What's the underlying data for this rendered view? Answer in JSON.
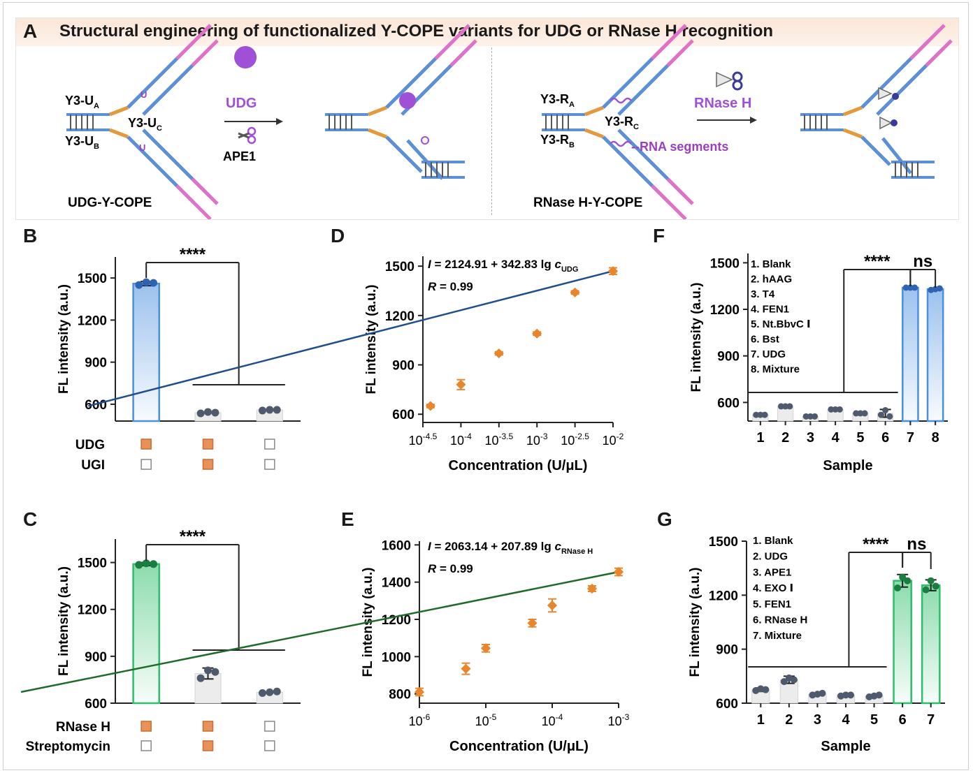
{
  "panelA": {
    "letter": "A",
    "title": "Structural engineering of functionalized Y-COPE variants for UDG or RNase H recognition",
    "left": {
      "labels": {
        "ua": "Y3-U",
        "ua_sub": "A",
        "ub": "Y3-U",
        "ub_sub": "B",
        "uc": "Y3-U",
        "uc_sub": "C"
      },
      "enzyme1": "UDG",
      "enzyme2": "APE1",
      "uracil": "U",
      "caption": "UDG-Y-COPE"
    },
    "right": {
      "labels": {
        "ra": "Y3-R",
        "ra_sub": "A",
        "rb": "Y3-R",
        "rb_sub": "B",
        "rc": "Y3-R",
        "rc_sub": "C"
      },
      "enzyme": "RNase H",
      "rna_label": "--RNA segments",
      "caption": "RNase H-Y-COPE"
    }
  },
  "panelB": {
    "letter": "B",
    "chart_data": {
      "type": "bar",
      "ylabel": "FL intensity (a.u.)",
      "yticks": [
        600,
        900,
        1200,
        1500
      ],
      "ylim": [
        480,
        1650
      ],
      "values": [
        1460,
        540,
        560
      ],
      "points": [
        [
          1450,
          1470,
          1465
        ],
        [
          535,
          545,
          540
        ],
        [
          555,
          560,
          560
        ]
      ],
      "errors": [
        15,
        0,
        0
      ],
      "condition_rows": [
        {
          "label": "UDG",
          "states": [
            true,
            true,
            false
          ]
        },
        {
          "label": "UGI",
          "states": [
            false,
            true,
            false
          ]
        }
      ],
      "significance": "****",
      "color": "#4a8fe0"
    }
  },
  "panelC": {
    "letter": "C",
    "chart_data": {
      "type": "bar",
      "ylabel": "FL intensity (a.u.)",
      "yticks": [
        600,
        900,
        1200,
        1500
      ],
      "ylim": [
        600,
        1650
      ],
      "values": [
        1490,
        790,
        670
      ],
      "points": [
        [
          1485,
          1495,
          1490
        ],
        [
          760,
          810,
          800
        ],
        [
          665,
          670,
          675
        ]
      ],
      "errors": [
        10,
        35,
        0
      ],
      "condition_rows": [
        {
          "label": "RNase H",
          "states": [
            true,
            true,
            false
          ]
        },
        {
          "label": "Streptomycin",
          "states": [
            false,
            true,
            false
          ]
        }
      ],
      "significance": "****",
      "color": "#2ebf6a"
    }
  },
  "panelD": {
    "letter": "D",
    "chart_data": {
      "type": "scatter",
      "xlabel": "Concentration (U/μL)",
      "ylabel": "FL intensity (a.u.)",
      "xscale": "log",
      "xlim": [
        -4.5,
        -2
      ],
      "ylim": [
        550,
        1560
      ],
      "yticks": [
        600,
        900,
        1200,
        1500
      ],
      "xticks": [
        -4.5,
        -4,
        -3.5,
        -3,
        -2.5,
        -2
      ],
      "x": [
        -4.4,
        -4,
        -3.5,
        -3,
        -2.5,
        -2
      ],
      "y": [
        650,
        780,
        970,
        1090,
        1340,
        1470
      ],
      "errors": [
        10,
        30,
        10,
        10,
        10,
        20
      ],
      "fit": {
        "intercept": 2124.91,
        "slope": 342.83
      },
      "equation": "= 2124.91 + 342.83 lg",
      "eq_var": "I",
      "eq_c": "c",
      "eq_sub": "UDG",
      "r_label": "R",
      "r_value": "= 0.99",
      "line_color": "#1f4e8c"
    }
  },
  "panelE": {
    "letter": "E",
    "chart_data": {
      "type": "scatter",
      "xlabel": "Concentration (U/μL)",
      "ylabel": "FL intensity (a.u.)",
      "xscale": "log",
      "xlim": [
        -6,
        -3
      ],
      "ylim": [
        750,
        1620
      ],
      "yticks": [
        800,
        1000,
        1200,
        1400,
        1600
      ],
      "xticks": [
        -6,
        -5,
        -4,
        -3
      ],
      "x": [
        -6,
        -5.3,
        -5,
        -4.3,
        -4,
        -3.4,
        -3
      ],
      "y": [
        810,
        935,
        1045,
        1180,
        1275,
        1365,
        1455
      ],
      "errors": [
        20,
        30,
        20,
        20,
        35,
        15,
        20
      ],
      "fit": {
        "intercept": 2063.14,
        "slope": 207.89
      },
      "equation": "= 2063.14 + 207.89 lg",
      "eq_var": "I",
      "eq_c": "c",
      "eq_sub": "RNase H",
      "r_label": "R",
      "r_value": "= 0.99",
      "line_color": "#1f6b2a"
    }
  },
  "panelF": {
    "letter": "F",
    "chart_data": {
      "type": "bar",
      "xlabel": "Sample",
      "ylabel": "FL intensity (a.u.)",
      "ylim": [
        480,
        1560
      ],
      "yticks": [
        600,
        900,
        1200,
        1500
      ],
      "categories": [
        "1",
        "2",
        "3",
        "4",
        "5",
        "6",
        "7",
        "8"
      ],
      "values": [
        520,
        575,
        510,
        555,
        530,
        530,
        1340,
        1330
      ],
      "points": [
        [
          520,
          520,
          520
        ],
        [
          575,
          575,
          575
        ],
        [
          510,
          510,
          510
        ],
        [
          555,
          555,
          555
        ],
        [
          530,
          530,
          530
        ],
        [
          520,
          550,
          510
        ],
        [
          1340,
          1340,
          1340
        ],
        [
          1325,
          1330,
          1335
        ]
      ],
      "errors": [
        0,
        0,
        0,
        0,
        0,
        25,
        0,
        5
      ],
      "legend": [
        "1. Blank",
        "2. hAAG",
        "3. T4",
        "4. FEN1",
        "5. Nt.BbvC Ⅰ",
        "6. Bst",
        "7. UDG",
        "8. Mixture"
      ],
      "sig_main": "****",
      "sig_ns": "ns",
      "color": "#4a8fe0"
    }
  },
  "panelG": {
    "letter": "G",
    "chart_data": {
      "type": "bar",
      "xlabel": "Sample",
      "ylabel": "FL intensity (a.u.)",
      "ylim": [
        600,
        1500
      ],
      "yticks": [
        600,
        900,
        1200,
        1500
      ],
      "categories": [
        "1",
        "2",
        "3",
        "4",
        "5",
        "6",
        "7"
      ],
      "values": [
        675,
        730,
        650,
        645,
        640,
        1280,
        1255
      ],
      "points": [
        [
          670,
          680,
          675
        ],
        [
          720,
          740,
          730
        ],
        [
          645,
          650,
          655
        ],
        [
          640,
          645,
          645
        ],
        [
          635,
          640,
          645
        ],
        [
          1240,
          1300,
          1280
        ],
        [
          1230,
          1280,
          1250
        ]
      ],
      "errors": [
        10,
        20,
        5,
        0,
        0,
        35,
        30
      ],
      "legend": [
        "1. Blank",
        "2. UDG",
        "3. APE1",
        "4. EXO Ⅰ",
        "5. FEN1",
        "6. RNase H",
        "7. Mixture"
      ],
      "sig_main": "****",
      "sig_ns": "ns",
      "color": "#2ebf6a"
    }
  }
}
